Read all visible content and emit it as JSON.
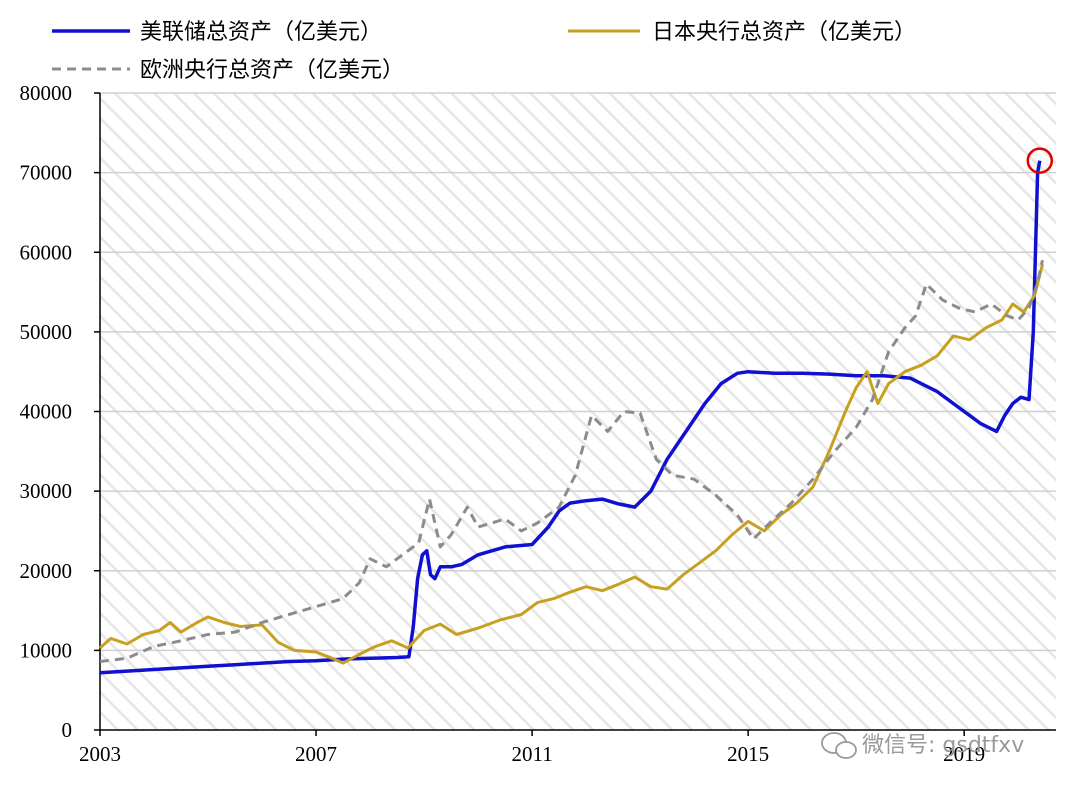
{
  "chart_data": {
    "type": "line",
    "title": "",
    "xlabel": "",
    "ylabel": "",
    "ylim": [
      0,
      80000
    ],
    "xlim": [
      2003,
      2020.7
    ],
    "y_ticks": [
      0,
      10000,
      20000,
      30000,
      40000,
      50000,
      60000,
      70000,
      80000
    ],
    "x_ticks": [
      2003,
      2007,
      2011,
      2015,
      2019
    ],
    "grid": "horizontal",
    "background": "diagonal hatch",
    "legend_position": "top",
    "series": [
      {
        "name": "美联储总资产（亿美元）",
        "color": "#1010d0",
        "style": "solid",
        "points": [
          [
            2003.0,
            7200
          ],
          [
            2003.5,
            7400
          ],
          [
            2004.0,
            7600
          ],
          [
            2004.5,
            7800
          ],
          [
            2005.0,
            8000
          ],
          [
            2005.5,
            8200
          ],
          [
            2006.0,
            8400
          ],
          [
            2006.5,
            8600
          ],
          [
            2007.0,
            8700
          ],
          [
            2007.5,
            8900
          ],
          [
            2008.0,
            9000
          ],
          [
            2008.5,
            9100
          ],
          [
            2008.72,
            9200
          ],
          [
            2008.8,
            13000
          ],
          [
            2008.88,
            19000
          ],
          [
            2008.97,
            22000
          ],
          [
            2009.05,
            22500
          ],
          [
            2009.12,
            19500
          ],
          [
            2009.2,
            19000
          ],
          [
            2009.3,
            20500
          ],
          [
            2009.5,
            20500
          ],
          [
            2009.7,
            20800
          ],
          [
            2010.0,
            22000
          ],
          [
            2010.5,
            23000
          ],
          [
            2011.0,
            23300
          ],
          [
            2011.3,
            25500
          ],
          [
            2011.5,
            27500
          ],
          [
            2011.7,
            28500
          ],
          [
            2012.0,
            28800
          ],
          [
            2012.3,
            29000
          ],
          [
            2012.6,
            28400
          ],
          [
            2012.9,
            28000
          ],
          [
            2013.2,
            30000
          ],
          [
            2013.5,
            34000
          ],
          [
            2013.8,
            37000
          ],
          [
            2014.2,
            41000
          ],
          [
            2014.5,
            43500
          ],
          [
            2014.8,
            44800
          ],
          [
            2015.0,
            45000
          ],
          [
            2015.5,
            44800
          ],
          [
            2016.0,
            44800
          ],
          [
            2016.5,
            44700
          ],
          [
            2017.0,
            44500
          ],
          [
            2017.5,
            44500
          ],
          [
            2018.0,
            44200
          ],
          [
            2018.5,
            42500
          ],
          [
            2019.0,
            40000
          ],
          [
            2019.3,
            38500
          ],
          [
            2019.6,
            37500
          ],
          [
            2019.75,
            39500
          ],
          [
            2019.9,
            41000
          ],
          [
            2020.05,
            41800
          ],
          [
            2020.2,
            41500
          ],
          [
            2020.28,
            50000
          ],
          [
            2020.36,
            70000
          ],
          [
            2020.4,
            71500
          ]
        ]
      },
      {
        "name": "日本央行总资产（亿美元）",
        "color": "#c8a020",
        "style": "solid",
        "points": [
          [
            2003.0,
            10300
          ],
          [
            2003.2,
            11500
          ],
          [
            2003.5,
            10800
          ],
          [
            2003.8,
            12000
          ],
          [
            2004.1,
            12500
          ],
          [
            2004.3,
            13500
          ],
          [
            2004.5,
            12300
          ],
          [
            2004.8,
            13500
          ],
          [
            2005.0,
            14200
          ],
          [
            2005.3,
            13500
          ],
          [
            2005.6,
            13000
          ],
          [
            2006.0,
            13200
          ],
          [
            2006.3,
            11000
          ],
          [
            2006.6,
            10000
          ],
          [
            2007.0,
            9800
          ],
          [
            2007.3,
            9000
          ],
          [
            2007.5,
            8400
          ],
          [
            2007.8,
            9500
          ],
          [
            2008.1,
            10500
          ],
          [
            2008.4,
            11200
          ],
          [
            2008.7,
            10300
          ],
          [
            2009.0,
            12500
          ],
          [
            2009.3,
            13300
          ],
          [
            2009.6,
            12000
          ],
          [
            2010.0,
            12800
          ],
          [
            2010.4,
            13800
          ],
          [
            2010.8,
            14500
          ],
          [
            2011.1,
            16000
          ],
          [
            2011.4,
            16500
          ],
          [
            2011.7,
            17300
          ],
          [
            2012.0,
            18000
          ],
          [
            2012.3,
            17500
          ],
          [
            2012.6,
            18300
          ],
          [
            2012.9,
            19200
          ],
          [
            2013.2,
            18000
          ],
          [
            2013.5,
            17700
          ],
          [
            2013.8,
            19500
          ],
          [
            2014.1,
            21000
          ],
          [
            2014.4,
            22500
          ],
          [
            2014.7,
            24500
          ],
          [
            2015.0,
            26200
          ],
          [
            2015.3,
            25000
          ],
          [
            2015.6,
            27000
          ],
          [
            2015.9,
            28500
          ],
          [
            2016.2,
            30500
          ],
          [
            2016.5,
            35000
          ],
          [
            2016.8,
            40000
          ],
          [
            2017.0,
            43000
          ],
          [
            2017.2,
            45000
          ],
          [
            2017.4,
            41000
          ],
          [
            2017.6,
            43500
          ],
          [
            2017.9,
            45000
          ],
          [
            2018.2,
            45800
          ],
          [
            2018.5,
            47000
          ],
          [
            2018.8,
            49500
          ],
          [
            2019.1,
            49000
          ],
          [
            2019.4,
            50500
          ],
          [
            2019.7,
            51500
          ],
          [
            2019.9,
            53500
          ],
          [
            2020.1,
            52500
          ],
          [
            2020.3,
            54500
          ],
          [
            2020.45,
            58500
          ]
        ]
      },
      {
        "name": "欧洲央行总资产（亿美元）",
        "color": "#8c8c8c",
        "style": "dashed",
        "points": [
          [
            2003.0,
            8600
          ],
          [
            2003.5,
            9000
          ],
          [
            2004.0,
            10500
          ],
          [
            2004.5,
            11200
          ],
          [
            2005.0,
            12000
          ],
          [
            2005.5,
            12300
          ],
          [
            2006.0,
            13500
          ],
          [
            2006.5,
            14500
          ],
          [
            2007.0,
            15500
          ],
          [
            2007.5,
            16500
          ],
          [
            2007.8,
            18500
          ],
          [
            2008.0,
            21500
          ],
          [
            2008.3,
            20500
          ],
          [
            2008.6,
            22000
          ],
          [
            2008.9,
            23500
          ],
          [
            2009.1,
            29000
          ],
          [
            2009.3,
            23000
          ],
          [
            2009.5,
            24500
          ],
          [
            2009.8,
            28000
          ],
          [
            2010.0,
            25500
          ],
          [
            2010.5,
            26500
          ],
          [
            2010.8,
            25000
          ],
          [
            2011.1,
            26000
          ],
          [
            2011.5,
            28000
          ],
          [
            2011.8,
            32000
          ],
          [
            2012.1,
            39500
          ],
          [
            2012.4,
            37500
          ],
          [
            2012.7,
            40000
          ],
          [
            2013.0,
            39800
          ],
          [
            2013.3,
            34000
          ],
          [
            2013.6,
            32000
          ],
          [
            2014.0,
            31500
          ],
          [
            2014.4,
            29500
          ],
          [
            2014.8,
            27000
          ],
          [
            2015.1,
            24000
          ],
          [
            2015.4,
            26000
          ],
          [
            2015.8,
            28500
          ],
          [
            2016.2,
            31500
          ],
          [
            2016.6,
            35000
          ],
          [
            2017.0,
            38000
          ],
          [
            2017.3,
            41500
          ],
          [
            2017.6,
            47500
          ],
          [
            2017.9,
            50500
          ],
          [
            2018.1,
            52000
          ],
          [
            2018.3,
            56000
          ],
          [
            2018.6,
            54000
          ],
          [
            2018.9,
            53000
          ],
          [
            2019.2,
            52500
          ],
          [
            2019.5,
            53500
          ],
          [
            2019.8,
            52000
          ],
          [
            2020.0,
            51500
          ],
          [
            2020.2,
            53000
          ],
          [
            2020.35,
            56000
          ],
          [
            2020.45,
            59000
          ]
        ]
      }
    ],
    "annotations": [
      {
        "type": "circle",
        "color": "#e00000",
        "x": 2020.4,
        "y": 71500
      }
    ]
  },
  "watermark": {
    "text": "微信号: gsdtfxv",
    "icon": "wechat-icon"
  }
}
